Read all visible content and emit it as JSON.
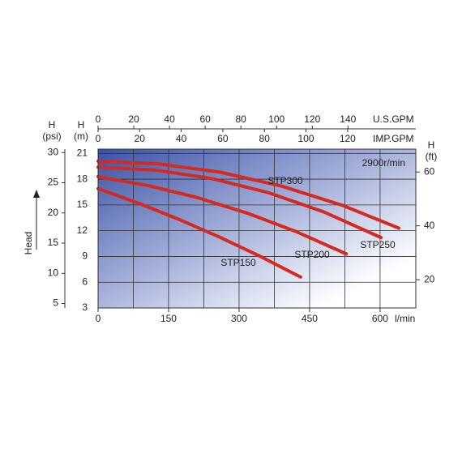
{
  "chart_data": {
    "type": "line",
    "y_label": "Head",
    "annotation": "2900r/min",
    "x_label": "l/min",
    "xlim": [
      0,
      676
    ],
    "xticks": [
      0,
      150,
      300,
      450,
      600
    ],
    "x_grid": [
      75,
      150,
      225,
      300,
      375,
      450,
      525,
      600
    ],
    "x_top": {
      "label": "U.S.GPM",
      "lim": [
        0,
        178
      ],
      "ticks": [
        0,
        20,
        40,
        60,
        80,
        100,
        120,
        140
      ]
    },
    "x_top2": {
      "label": "IMP.GPM",
      "lim": [
        0,
        152.8
      ],
      "ticks": [
        0,
        20,
        40,
        60,
        80,
        100,
        120
      ]
    },
    "y_label_m": {
      "symbol": "H",
      "unit": "(m)"
    },
    "ylim": [
      3,
      21.5
    ],
    "yticks": [
      3,
      6,
      9,
      12,
      15,
      18,
      21
    ],
    "y_psi": {
      "symbol": "H",
      "unit": "(psi)",
      "lim": [
        4.27,
        30.57
      ],
      "ticks": [
        5,
        10,
        15,
        20,
        25,
        30
      ]
    },
    "y_ft": {
      "symbol": "H",
      "unit": "(ft)",
      "lim": [
        9.5,
        68.5
      ],
      "ticks": [
        20,
        40,
        60
      ]
    },
    "grid": true,
    "series": [
      {
        "name": "STP300",
        "color": "#d42a1f",
        "x": [
          0,
          130,
          260,
          390,
          520,
          640
        ],
        "values": [
          20.1,
          19.78,
          18.81,
          17.2,
          14.95,
          12.3
        ]
      },
      {
        "name": "STP250",
        "color": "#d42a1f",
        "x": [
          0,
          120,
          240,
          360,
          480,
          602
        ],
        "values": [
          19.4,
          19.07,
          18.1,
          16.47,
          14.19,
          11.2
        ]
      },
      {
        "name": "STP200",
        "color": "#d42a1f",
        "x": [
          0,
          106,
          211,
          317,
          422,
          528
        ],
        "values": [
          18.3,
          17.26,
          15.86,
          14.05,
          11.88,
          9.3
        ]
      },
      {
        "name": "STP150",
        "color": "#d42a1f",
        "x": [
          0,
          86,
          172,
          259,
          345,
          431
        ],
        "values": [
          16.9,
          15.2,
          13.32,
          11.24,
          9.01,
          6.6
        ]
      }
    ]
  }
}
